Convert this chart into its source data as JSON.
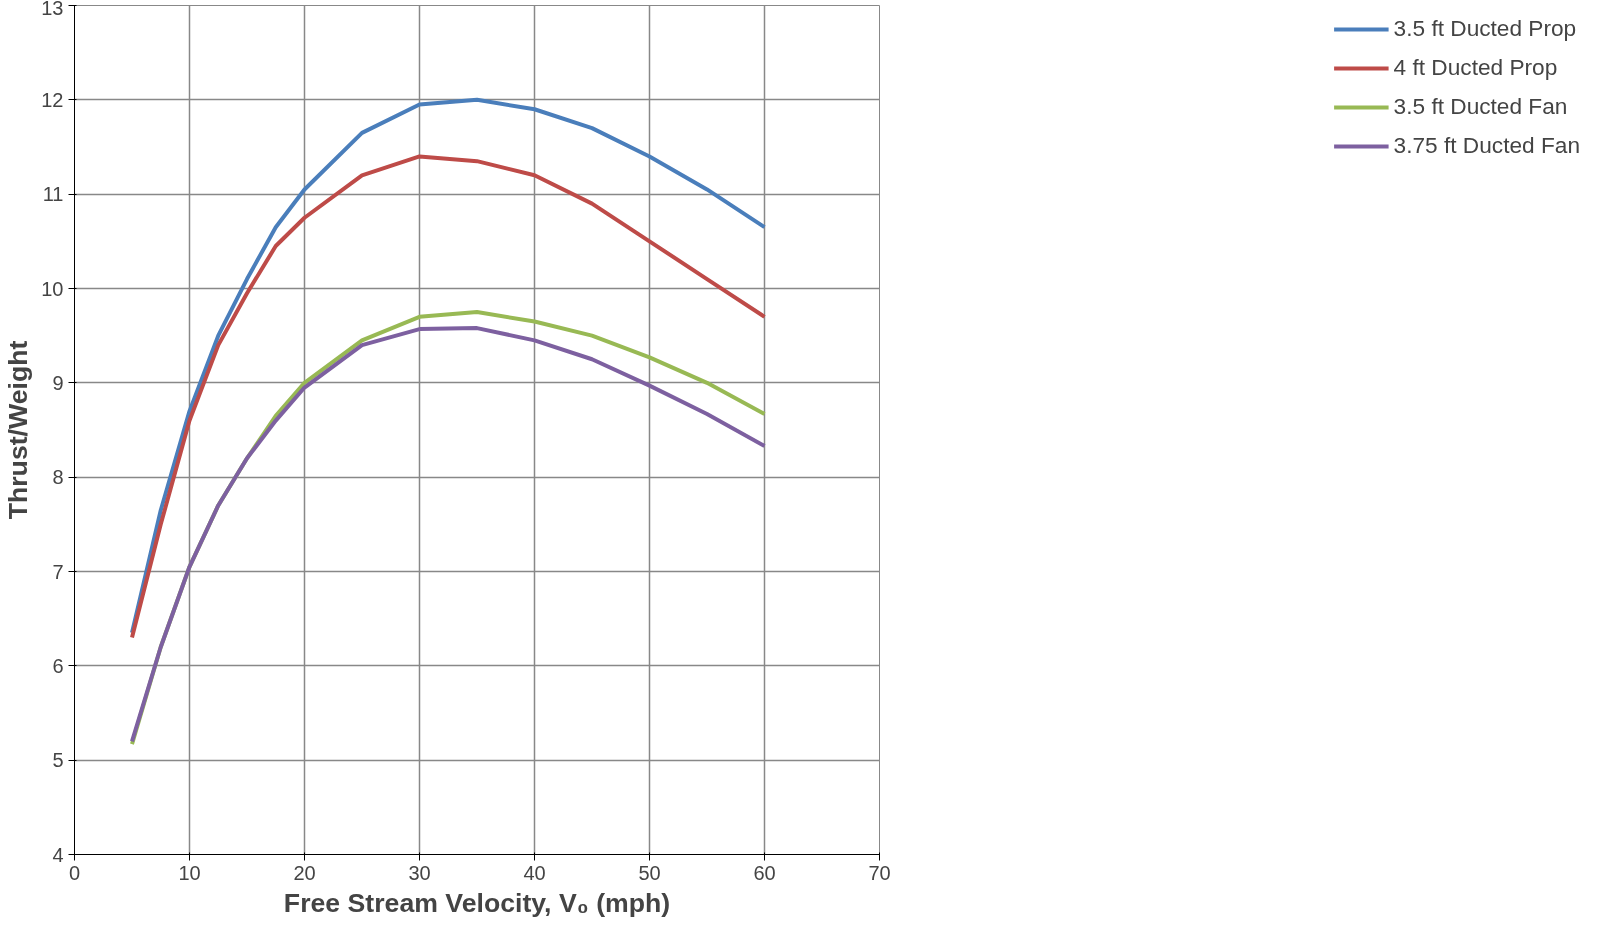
{
  "chart_data": {
    "type": "line",
    "xlabel": "Free Stream Velocity, V₀ (mph)",
    "ylabel": "Thrust/Weight",
    "x": [
      5,
      7.5,
      10,
      12.5,
      15,
      17.5,
      20,
      25,
      30,
      35,
      40,
      45,
      50,
      55,
      60
    ],
    "series": [
      {
        "name": "3.5 ft Ducted Prop",
        "color": "#4a7ebb",
        "values": [
          6.35,
          7.65,
          8.7,
          9.5,
          10.1,
          10.65,
          11.05,
          11.65,
          11.95,
          12.0,
          11.9,
          11.7,
          11.4,
          11.05,
          10.65
        ]
      },
      {
        "name": "4 ft Ducted Prop",
        "color": "#be4b48",
        "values": [
          6.3,
          7.5,
          8.6,
          9.4,
          9.95,
          10.45,
          10.75,
          11.2,
          11.4,
          11.35,
          11.2,
          10.9,
          10.5,
          10.1,
          9.7
        ]
      },
      {
        "name": "3.5 ft Ducted Fan",
        "color": "#98b954",
        "values": [
          5.17,
          6.2,
          7.05,
          7.7,
          8.2,
          8.65,
          9.0,
          9.45,
          9.7,
          9.75,
          9.65,
          9.5,
          9.27,
          9.0,
          8.67
        ]
      },
      {
        "name": "3.75 ft Ducted Fan",
        "color": "#7d60a0",
        "values": [
          5.2,
          6.2,
          7.05,
          7.7,
          8.2,
          8.6,
          8.95,
          9.4,
          9.57,
          9.58,
          9.45,
          9.25,
          8.97,
          8.67,
          8.33
        ]
      }
    ],
    "xlim": [
      0,
      70
    ],
    "xticks": [
      0,
      10,
      20,
      30,
      40,
      50,
      60,
      70
    ],
    "ylim": [
      4,
      13
    ],
    "yticks": [
      4,
      5,
      6,
      7,
      8,
      9,
      10,
      11,
      12,
      13
    ],
    "grid": true,
    "legend": "right",
    "marker": "none",
    "line_style": "solid"
  }
}
